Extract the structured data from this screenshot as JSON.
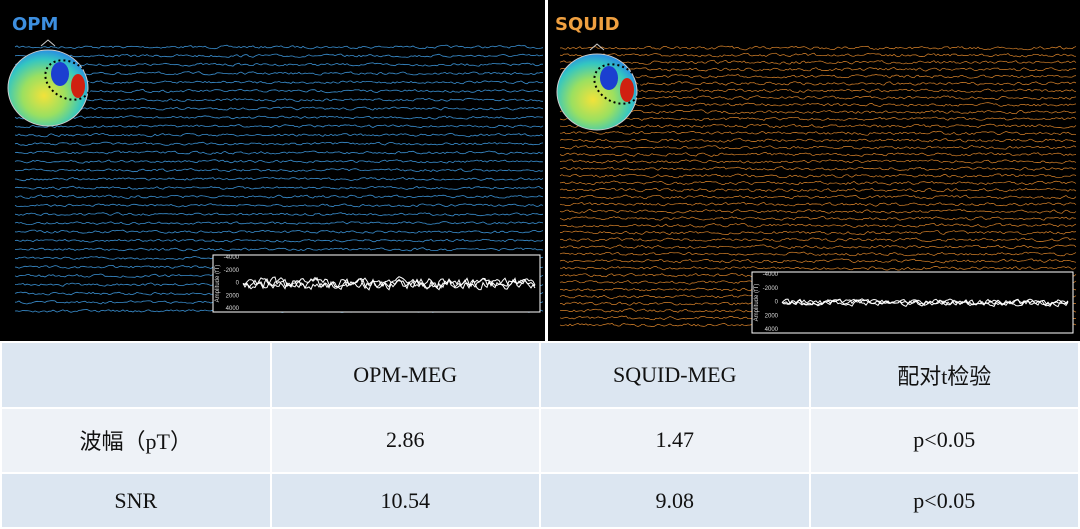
{
  "panels": [
    {
      "label": "OPM",
      "inset": {
        "ylabel": "Amplitude (fT)",
        "yticks": [
          "-4000",
          "-2000",
          "0",
          "2000",
          "4000"
        ]
      }
    },
    {
      "label": "SQUID",
      "inset": {
        "ylabel": "Amplitude (fT)",
        "yticks": [
          "-4000",
          "-2000",
          "0",
          "2000",
          "4000"
        ]
      }
    }
  ],
  "table": {
    "columns": [
      "OPM-MEG",
      "SQUID-MEG",
      "配对t检验"
    ],
    "rows": [
      {
        "label": "波幅（pT）",
        "cells": [
          "2.86",
          "1.47",
          "p<0.05"
        ]
      },
      {
        "label": "SNR",
        "cells": [
          "10.54",
          "9.08",
          "p<0.05"
        ]
      }
    ]
  }
}
